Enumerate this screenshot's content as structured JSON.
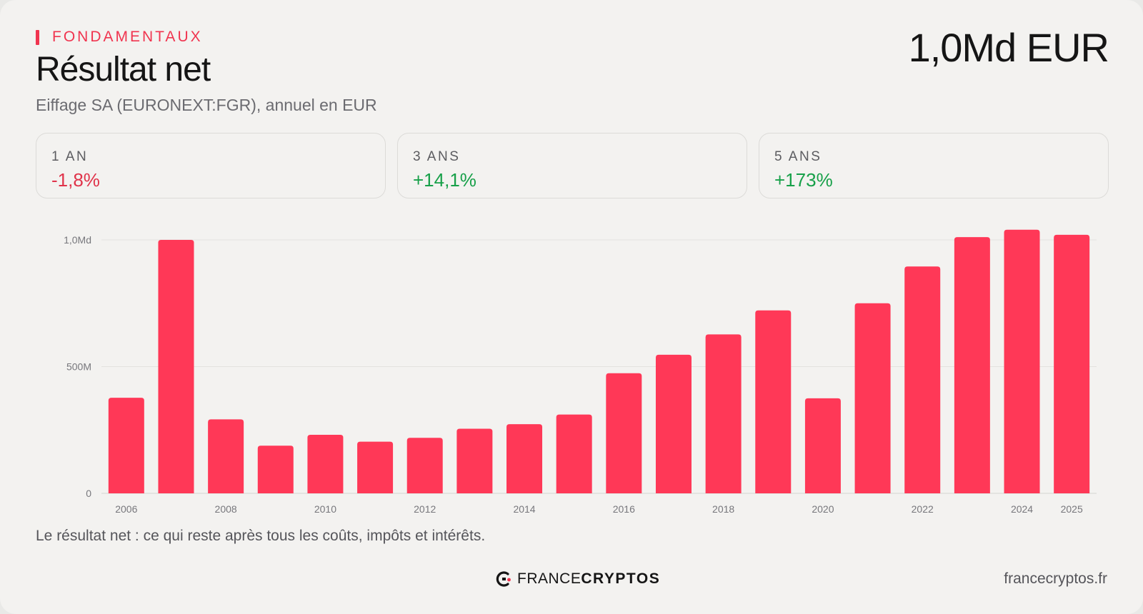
{
  "header": {
    "kicker": "FONDAMENTAUX",
    "title": "Résultat net",
    "subtitle": "Eiffage SA (EURONEXT:FGR), annuel en EUR",
    "big_value": "1,0Md EUR"
  },
  "stats": [
    {
      "label": "1 AN",
      "value": "-1,8%",
      "trend": "negative"
    },
    {
      "label": "3 ANS",
      "value": "+14,1%",
      "trend": "positive"
    },
    {
      "label": "5 ANS",
      "value": "+173%",
      "trend": "positive"
    }
  ],
  "colors": {
    "accent": "#ff3857",
    "negative": "#e0334a",
    "positive": "#17a049"
  },
  "chart_data": {
    "type": "bar",
    "categories": [
      "2006",
      "2007",
      "2008",
      "2009",
      "2010",
      "2011",
      "2012",
      "2013",
      "2014",
      "2015",
      "2016",
      "2017",
      "2018",
      "2019",
      "2020",
      "2021",
      "2022",
      "2023",
      "2024",
      "2025"
    ],
    "values": [
      377,
      1000,
      292,
      188,
      231,
      204,
      219,
      255,
      273,
      311,
      474,
      547,
      627,
      722,
      375,
      750,
      895,
      1011,
      1040,
      1020
    ],
    "unit": "M EUR",
    "ylim": [
      0,
      1000
    ],
    "y_ticks": [
      {
        "value": 0,
        "label": "0"
      },
      {
        "value": 500,
        "label": "500M"
      },
      {
        "value": 1000,
        "label": "1,0Md"
      }
    ],
    "x_tick_labels": [
      "2006",
      "2008",
      "2010",
      "2012",
      "2014",
      "2016",
      "2018",
      "2020",
      "2022",
      "2024",
      "2025"
    ],
    "grid": true,
    "legend": "none"
  },
  "footer": {
    "caption": "Le résultat net : ce qui reste après tous les coûts, impôts et intérêts.",
    "brand_light": "FRANCE",
    "brand_bold": "CRYPTOS",
    "brand_logo_icon": "francecryptos-logo-icon",
    "site": "francecryptos.fr"
  }
}
